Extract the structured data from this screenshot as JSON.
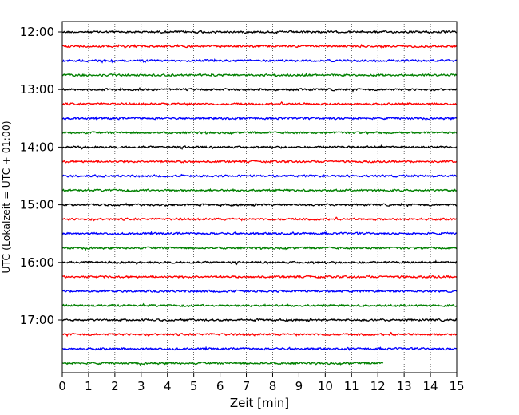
{
  "chart_data": {
    "type": "line",
    "subtype": "helicorder",
    "title": "",
    "xlabel": "Zeit  [min]",
    "ylabel": "UTC (Lokalzeit = UTC + 01:00)",
    "xlim": [
      0,
      15
    ],
    "x_ticks": [
      "0",
      "1",
      "2",
      "3",
      "4",
      "5",
      "6",
      "7",
      "8",
      "9",
      "10",
      "11",
      "12",
      "13",
      "14",
      "15"
    ],
    "y_tick_labels": [
      "12:00",
      "13:00",
      "14:00",
      "15:00",
      "16:00",
      "17:00"
    ],
    "y_tick_label_rows": [
      0,
      4,
      8,
      12,
      16,
      20
    ],
    "row_interval_minutes": 15,
    "row_count": 24,
    "last_row_end_minute": 12.2,
    "color_cycle": [
      "#000000",
      "#ff0000",
      "#0000ff",
      "#008000"
    ],
    "vertical_gridlines": "dotted",
    "legend": "none"
  }
}
